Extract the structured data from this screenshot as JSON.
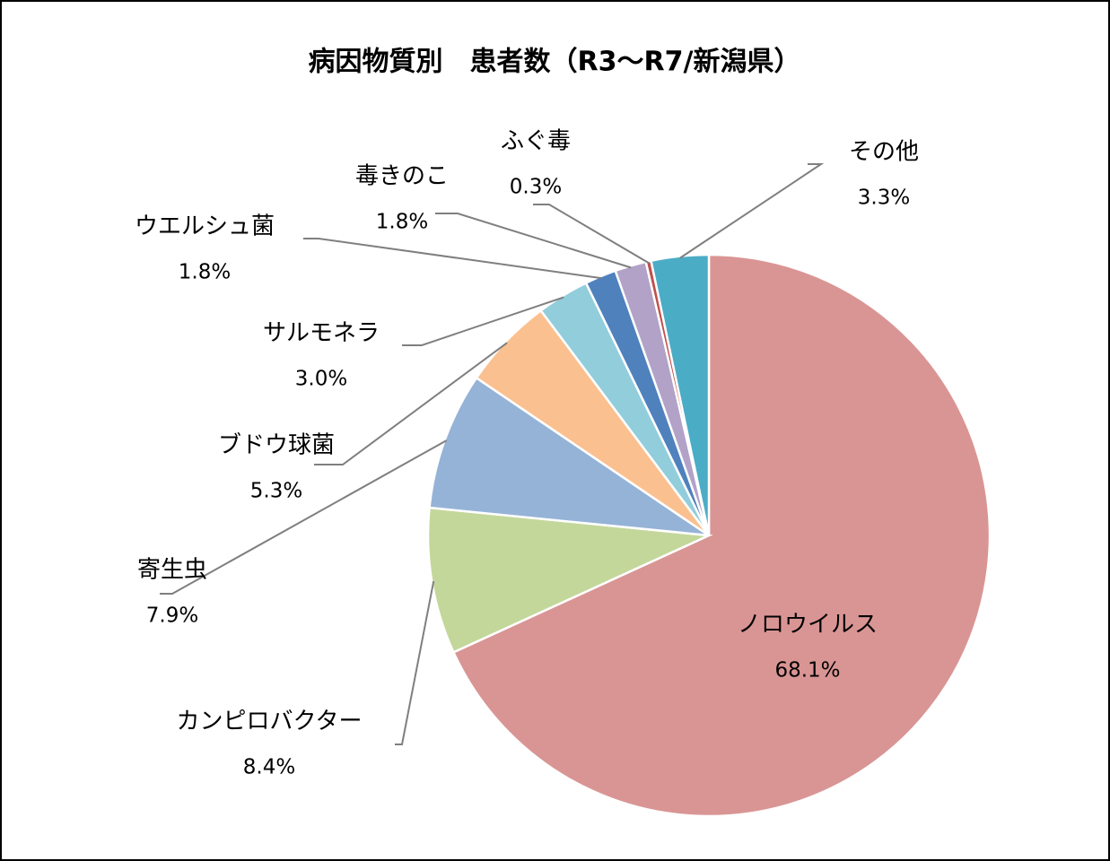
{
  "chart_data": {
    "type": "pie",
    "title": "病因物質別　患者数（R3～R7/新潟県）",
    "categories": [
      "ノロウイルス",
      "カンピロバクター",
      "寄生虫",
      "ブドウ球菌",
      "サルモネラ",
      "ウエルシュ菌",
      "毒きのこ",
      "ふぐ毒",
      "その他"
    ],
    "values": [
      68.1,
      8.4,
      7.9,
      5.3,
      3.0,
      1.8,
      1.8,
      0.3,
      3.3
    ],
    "value_labels": [
      "68.1%",
      "8.4%",
      "7.9%",
      "5.3%",
      "3.0%",
      "1.8%",
      "1.8%",
      "0.3%",
      "3.3%"
    ],
    "colors": [
      "#d99594",
      "#c4d79b",
      "#95b3d7",
      "#fac090",
      "#92cddc",
      "#4f81bd",
      "#b2a2c7",
      "#c0504d",
      "#4bacc6"
    ]
  }
}
